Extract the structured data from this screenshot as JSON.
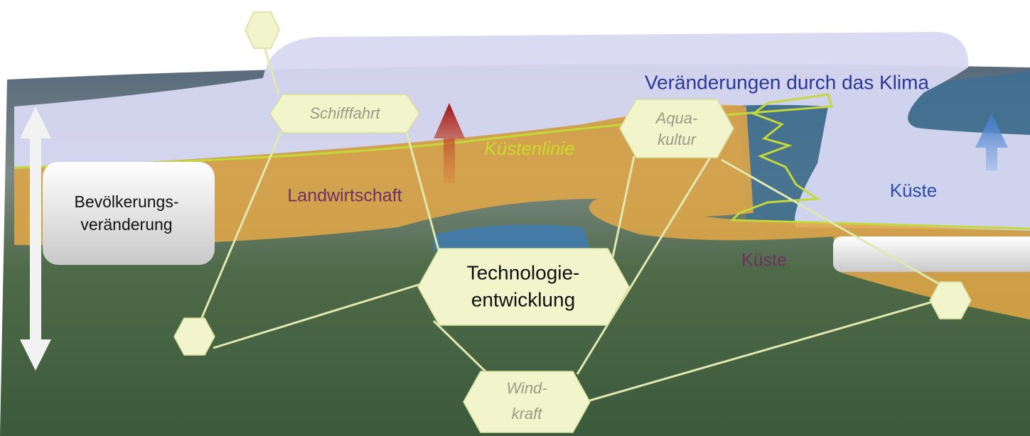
{
  "title": "Veränderungen durch das Klima",
  "coastline_label": "Küstenlinie",
  "regions": {
    "agriculture": "Landwirtschaft",
    "coast_land": "Küste",
    "coast_sea": "Küste"
  },
  "population_box": {
    "lines": [
      "Bevölkerungs-",
      "veränderung"
    ]
  },
  "nodes": [
    {
      "lines": [
        "Schifffahrt"
      ]
    },
    {
      "lines": [
        "Aqua-",
        "kultur"
      ]
    },
    {
      "lines": [
        "Technologie-",
        "entwicklung"
      ]
    },
    {
      "lines": [
        "Wind-",
        "kraft"
      ]
    }
  ]
}
